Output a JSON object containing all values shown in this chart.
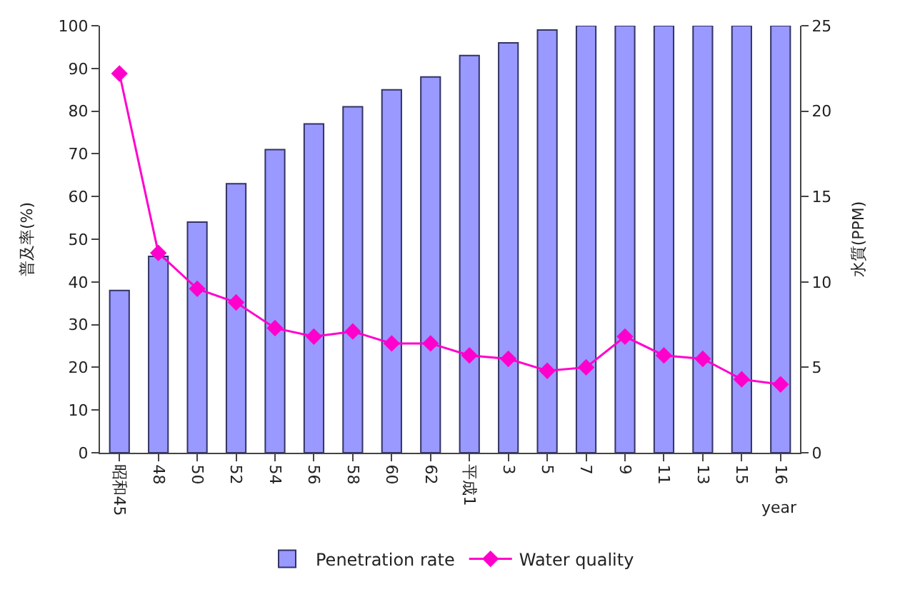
{
  "chart_data": {
    "type": "bar",
    "categories": [
      "昭和45",
      "48",
      "50",
      "52",
      "54",
      "56",
      "58",
      "60",
      "62",
      "平成1",
      "3",
      "5",
      "7",
      "9",
      "11",
      "13",
      "15",
      "16"
    ],
    "xlabel": "year",
    "ylabel": "普及率(%)",
    "y2label": "水質(PPM)",
    "series": [
      {
        "name": "Penetration rate",
        "color": "#9999ff",
        "values": [
          38,
          46,
          54,
          63,
          71,
          77,
          81,
          85,
          88,
          93,
          96,
          99,
          100,
          100,
          100,
          100,
          100,
          100
        ]
      },
      {
        "name": "Water quality",
        "type": "line",
        "axis": "y2",
        "color": "#ff00cc",
        "marker": "diamond",
        "values": [
          22.2,
          11.7,
          9.6,
          8.8,
          7.3,
          6.8,
          7.1,
          6.4,
          6.4,
          5.7,
          5.5,
          4.8,
          5.0,
          6.8,
          5.7,
          5.5,
          4.3,
          4.0
        ]
      }
    ],
    "ylim": [
      0,
      100
    ],
    "yticks": [
      0,
      10,
      20,
      30,
      40,
      50,
      60,
      70,
      80,
      90,
      100
    ],
    "y2lim": [
      0,
      25
    ],
    "y2ticks": [
      0,
      5,
      10,
      15,
      20,
      25
    ],
    "grid": false,
    "legend": "bottom"
  }
}
